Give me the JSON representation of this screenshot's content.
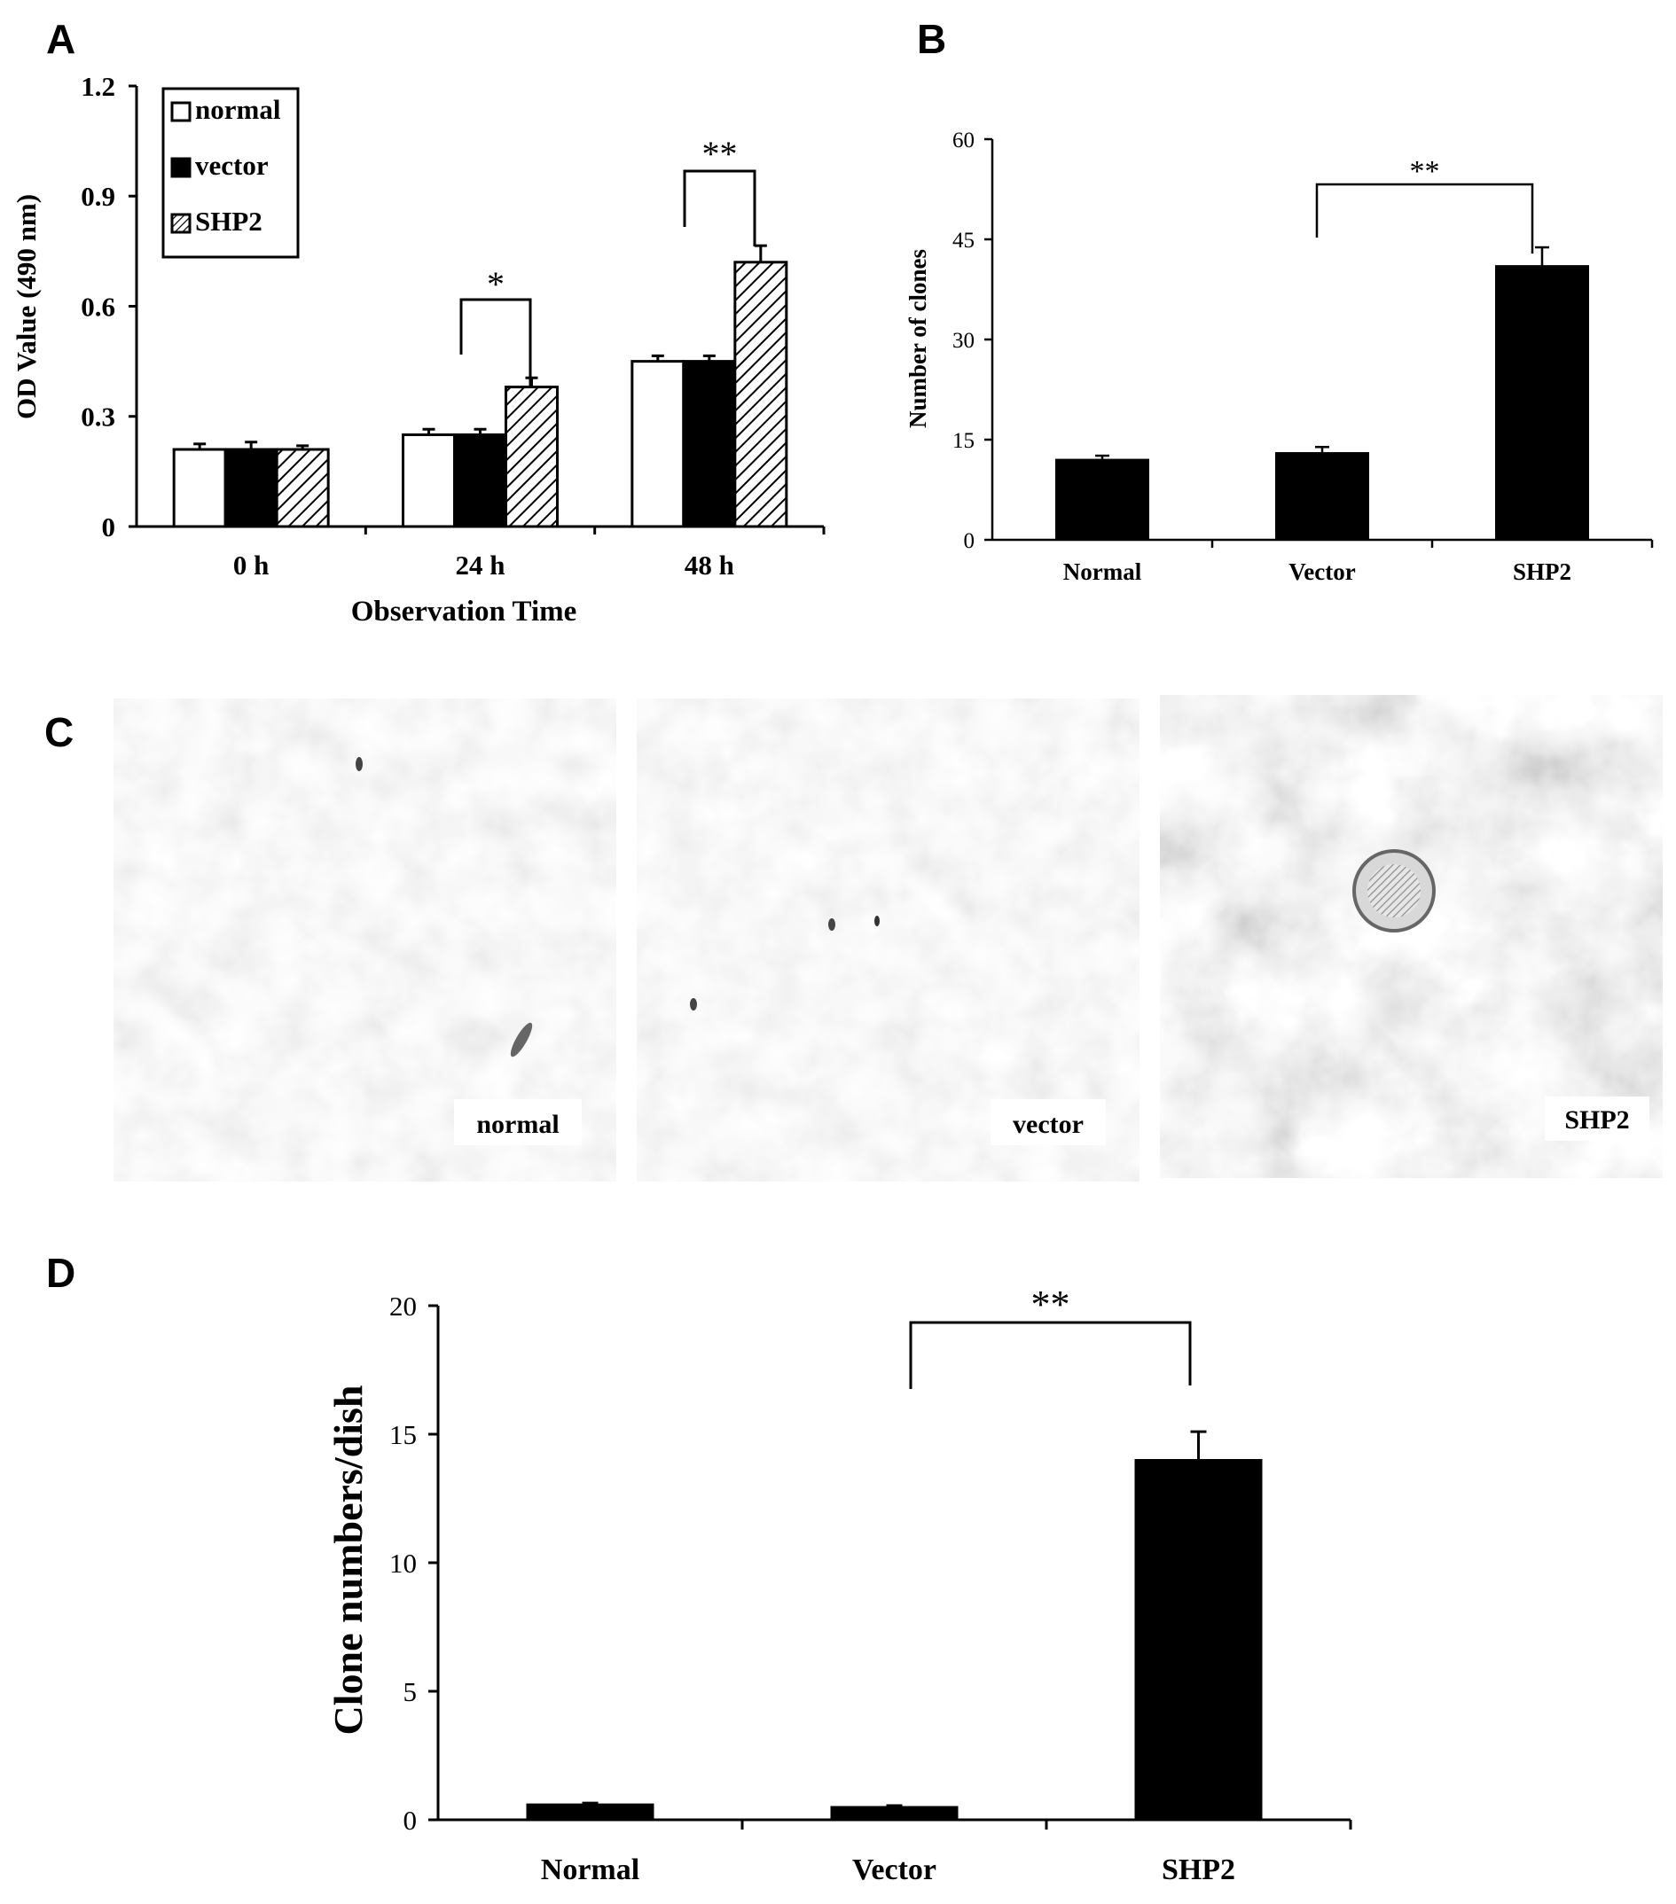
{
  "panel_letters": {
    "a": "A",
    "b": "B",
    "c": "C",
    "d": "D"
  },
  "micrograph_labels": [
    "normal",
    "vector",
    "SHP2"
  ],
  "colors": {
    "bar": "#000000",
    "open_bar": "#ffffff",
    "axis": "#000000"
  },
  "chart_data": [
    {
      "panel": "A",
      "type": "bar",
      "xlabel": "Observation Time",
      "ylabel": "OD Value (490 nm)",
      "categories": [
        "0 h",
        "24 h",
        "48 h"
      ],
      "ylim": [
        0,
        1.2
      ],
      "yticks": [
        "0",
        "0.3",
        "0.6",
        "0.9",
        "1.2"
      ],
      "legend": "top-left",
      "series": [
        {
          "name": "normal",
          "fill": "open",
          "values": [
            0.21,
            0.25,
            0.45
          ],
          "errors": [
            0.015,
            0.015,
            0.015
          ]
        },
        {
          "name": "vector",
          "fill": "solid",
          "values": [
            0.21,
            0.25,
            0.45
          ],
          "errors": [
            0.02,
            0.015,
            0.015
          ]
        },
        {
          "name": "SHP2",
          "fill": "hatched",
          "values": [
            0.21,
            0.38,
            0.72
          ],
          "errors": [
            0.01,
            0.025,
            0.045
          ]
        }
      ],
      "significance": [
        {
          "label": "*",
          "between": [
            "vector",
            "SHP2"
          ],
          "category": "24 h"
        },
        {
          "label": "**",
          "between": [
            "vector",
            "SHP2"
          ],
          "category": "48 h"
        }
      ]
    },
    {
      "panel": "B",
      "type": "bar",
      "xlabel": "",
      "ylabel": "Number of clones",
      "categories": [
        "Normal",
        "Vector",
        "SHP2"
      ],
      "ylim": [
        0,
        60
      ],
      "yticks": [
        "0",
        "15",
        "30",
        "45",
        "60"
      ],
      "values": [
        12,
        13,
        41
      ],
      "errors": [
        0.6,
        0.9,
        2.8
      ],
      "significance": [
        {
          "label": "**",
          "between": [
            "Vector",
            "SHP2"
          ]
        }
      ]
    },
    {
      "panel": "D",
      "type": "bar",
      "xlabel": "",
      "ylabel": "Clone numbers/dish",
      "categories": [
        "Normal",
        "Vector",
        "SHP2"
      ],
      "ylim": [
        0,
        20
      ],
      "yticks": [
        "0",
        "5",
        "10",
        "15",
        "20"
      ],
      "values": [
        0.6,
        0.5,
        14
      ],
      "errors": [
        0.05,
        0.05,
        1.1
      ],
      "significance": [
        {
          "label": "**",
          "between": [
            "Vector",
            "SHP2"
          ]
        }
      ]
    }
  ]
}
